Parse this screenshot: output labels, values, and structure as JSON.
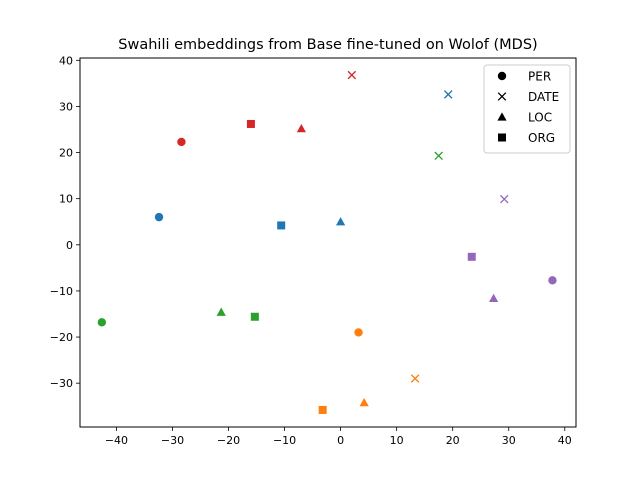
{
  "chart_data": {
    "type": "scatter",
    "title": "Swahili embeddings from Base fine-tuned on Wolof (MDS)",
    "xlabel": "",
    "ylabel": "",
    "xlim": [
      -46.5,
      42
    ],
    "ylim": [
      -39.5,
      40.5
    ],
    "xticks": [
      -40,
      -30,
      -20,
      -10,
      0,
      10,
      20,
      30,
      40
    ],
    "yticks": [
      -30,
      -20,
      -10,
      0,
      10,
      20,
      30,
      40
    ],
    "xtick_labels": [
      "−40",
      "−30",
      "−20",
      "−10",
      "0",
      "10",
      "20",
      "30",
      "40"
    ],
    "ytick_labels": [
      "−30",
      "−20",
      "−10",
      "0",
      "10",
      "20",
      "30",
      "40"
    ],
    "grid": false,
    "legend_position": "top-right",
    "legend": [
      {
        "label": "PER",
        "marker": "circle"
      },
      {
        "label": "DATE",
        "marker": "x"
      },
      {
        "label": "LOC",
        "marker": "triangle"
      },
      {
        "label": "ORG",
        "marker": "square"
      }
    ],
    "colors": {
      "blue": "#1f77b4",
      "orange": "#ff7f0e",
      "green": "#2ca02c",
      "red": "#d62728",
      "purple": "#9467bd"
    },
    "points": [
      {
        "category": "PER",
        "marker": "circle",
        "color": "#1f77b4",
        "x": -32.4,
        "y": 6.0
      },
      {
        "category": "PER",
        "marker": "circle",
        "color": "#d62728",
        "x": -28.4,
        "y": 22.3
      },
      {
        "category": "PER",
        "marker": "circle",
        "color": "#2ca02c",
        "x": -42.6,
        "y": -16.8
      },
      {
        "category": "PER",
        "marker": "circle",
        "color": "#ff7f0e",
        "x": 3.2,
        "y": -19.0
      },
      {
        "category": "PER",
        "marker": "circle",
        "color": "#9467bd",
        "x": 37.8,
        "y": -7.7
      },
      {
        "category": "DATE",
        "marker": "x",
        "color": "#d62728",
        "x": 2.0,
        "y": 36.8
      },
      {
        "category": "DATE",
        "marker": "x",
        "color": "#1f77b4",
        "x": 19.2,
        "y": 32.6
      },
      {
        "category": "DATE",
        "marker": "x",
        "color": "#2ca02c",
        "x": 17.5,
        "y": 19.3
      },
      {
        "category": "DATE",
        "marker": "x",
        "color": "#9467bd",
        "x": 29.2,
        "y": 9.9
      },
      {
        "category": "DATE",
        "marker": "x",
        "color": "#ff7f0e",
        "x": 13.3,
        "y": -29.0
      },
      {
        "category": "LOC",
        "marker": "triangle",
        "color": "#d62728",
        "x": -7.0,
        "y": 25.2
      },
      {
        "category": "LOC",
        "marker": "triangle",
        "color": "#1f77b4",
        "x": 0.0,
        "y": 5.0
      },
      {
        "category": "LOC",
        "marker": "triangle",
        "color": "#2ca02c",
        "x": -21.3,
        "y": -14.6
      },
      {
        "category": "LOC",
        "marker": "triangle",
        "color": "#9467bd",
        "x": 27.3,
        "y": -11.6
      },
      {
        "category": "LOC",
        "marker": "triangle",
        "color": "#ff7f0e",
        "x": 4.2,
        "y": -34.2
      },
      {
        "category": "ORG",
        "marker": "square",
        "color": "#d62728",
        "x": -16.0,
        "y": 26.2
      },
      {
        "category": "ORG",
        "marker": "square",
        "color": "#1f77b4",
        "x": -10.6,
        "y": 4.2
      },
      {
        "category": "ORG",
        "marker": "square",
        "color": "#2ca02c",
        "x": -15.3,
        "y": -15.6
      },
      {
        "category": "ORG",
        "marker": "square",
        "color": "#9467bd",
        "x": 23.4,
        "y": -2.6
      },
      {
        "category": "ORG",
        "marker": "square",
        "color": "#ff7f0e",
        "x": -3.2,
        "y": -35.8
      }
    ]
  }
}
